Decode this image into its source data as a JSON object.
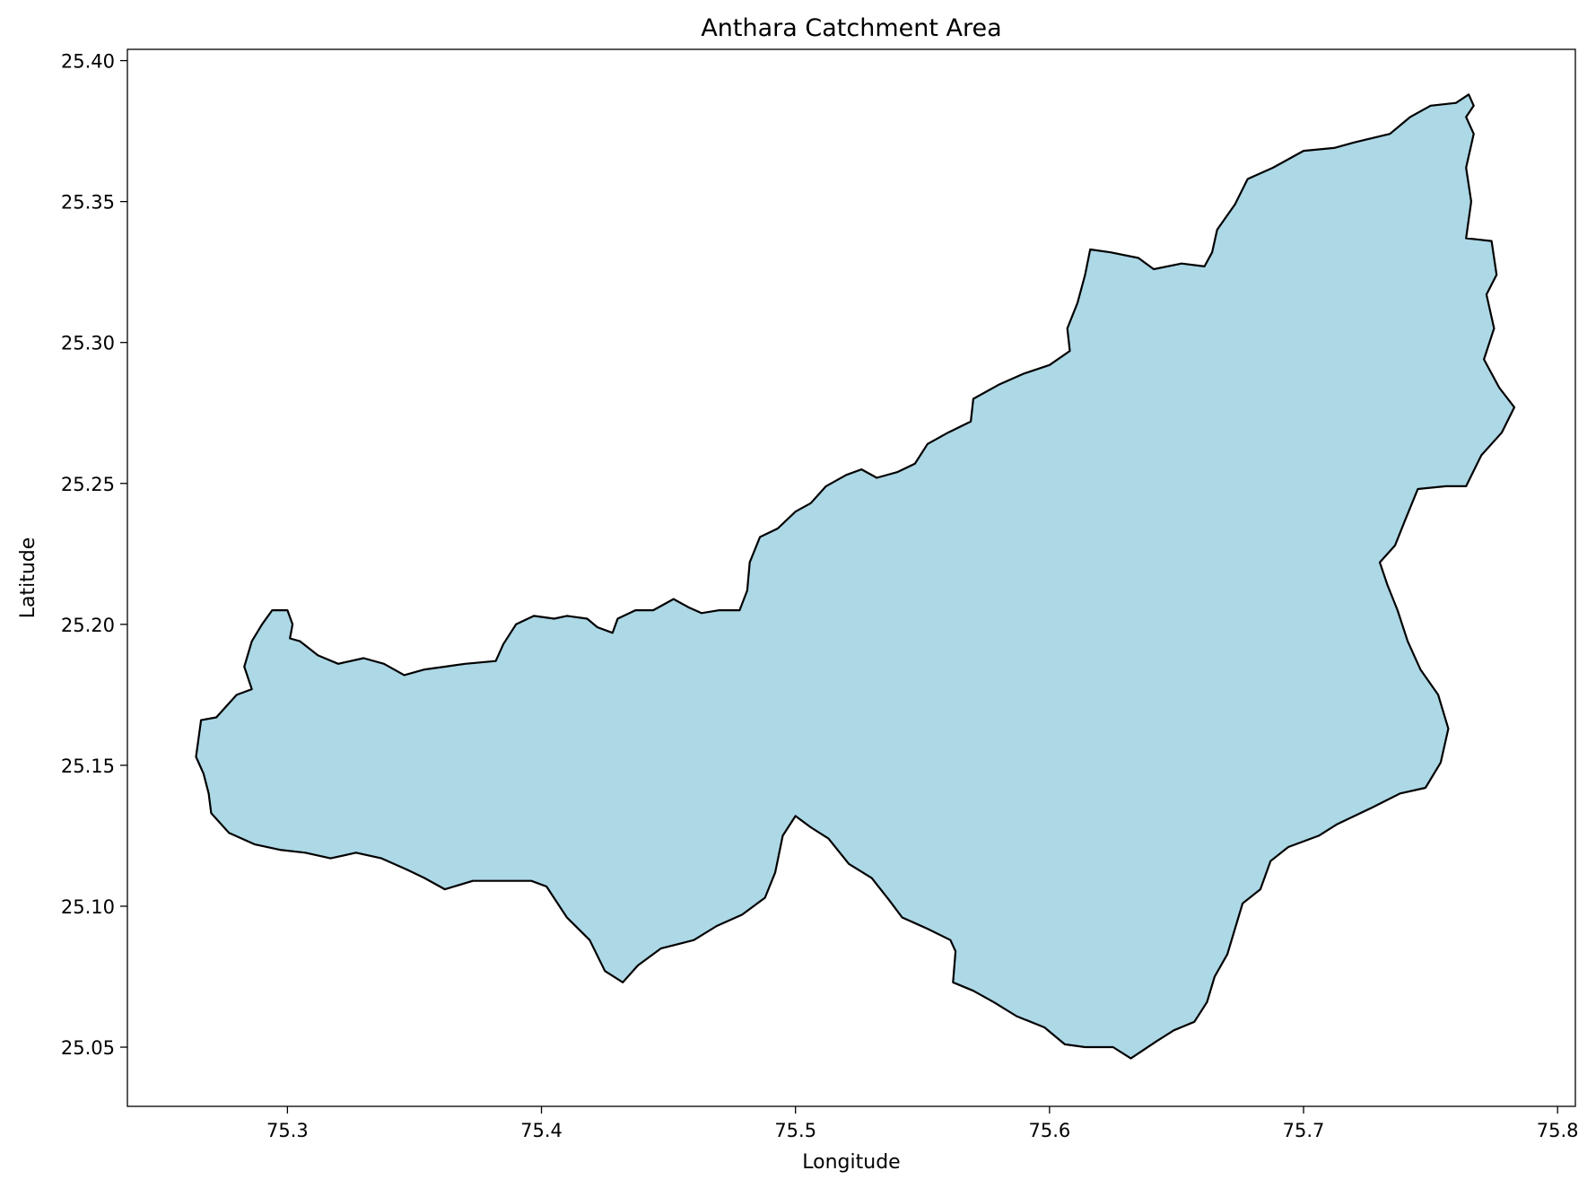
{
  "chart_data": {
    "type": "map",
    "title": "Anthara Catchment Area",
    "xlabel": "Longitude",
    "ylabel": "Latitude",
    "xlim": [
      75.237,
      75.807
    ],
    "ylim": [
      25.029,
      25.404
    ],
    "xticks": [
      75.3,
      75.4,
      75.5,
      75.6,
      75.7,
      75.8
    ],
    "xtick_labels": [
      "75.3",
      "75.4",
      "75.5",
      "75.6",
      "75.7",
      "75.8"
    ],
    "yticks": [
      25.05,
      25.1,
      25.15,
      25.2,
      25.25,
      25.3,
      25.35,
      25.4
    ],
    "ytick_labels": [
      "25.05",
      "25.10",
      "25.15",
      "25.20",
      "25.25",
      "25.30",
      "25.35",
      "25.40"
    ],
    "grid": false,
    "fill_color": "#add8e6",
    "edge_color": "#000000",
    "boundary": [
      [
        75.266,
        25.166
      ],
      [
        75.272,
        25.167
      ],
      [
        75.277,
        25.172
      ],
      [
        75.28,
        25.175
      ],
      [
        75.286,
        25.177
      ],
      [
        75.283,
        25.185
      ],
      [
        75.286,
        25.194
      ],
      [
        75.29,
        25.2
      ],
      [
        75.294,
        25.205
      ],
      [
        75.3,
        25.205
      ],
      [
        75.302,
        25.2
      ],
      [
        75.301,
        25.195
      ],
      [
        75.305,
        25.194
      ],
      [
        75.312,
        25.189
      ],
      [
        75.32,
        25.186
      ],
      [
        75.33,
        25.188
      ],
      [
        75.338,
        25.186
      ],
      [
        75.346,
        25.182
      ],
      [
        75.354,
        25.184
      ],
      [
        75.362,
        25.185
      ],
      [
        75.37,
        25.186
      ],
      [
        75.382,
        25.187
      ],
      [
        75.385,
        25.193
      ],
      [
        75.39,
        25.2
      ],
      [
        75.397,
        25.203
      ],
      [
        75.405,
        25.202
      ],
      [
        75.41,
        25.203
      ],
      [
        75.418,
        25.202
      ],
      [
        75.422,
        25.199
      ],
      [
        75.428,
        25.197
      ],
      [
        75.43,
        25.202
      ],
      [
        75.437,
        25.205
      ],
      [
        75.444,
        25.205
      ],
      [
        75.452,
        25.209
      ],
      [
        75.458,
        25.206
      ],
      [
        75.463,
        25.204
      ],
      [
        75.47,
        25.205
      ],
      [
        75.478,
        25.205
      ],
      [
        75.481,
        25.212
      ],
      [
        75.482,
        25.222
      ],
      [
        75.486,
        25.231
      ],
      [
        75.493,
        25.234
      ],
      [
        75.5,
        25.24
      ],
      [
        75.506,
        25.243
      ],
      [
        75.512,
        25.249
      ],
      [
        75.52,
        25.253
      ],
      [
        75.526,
        25.255
      ],
      [
        75.532,
        25.252
      ],
      [
        75.54,
        25.254
      ],
      [
        75.547,
        25.257
      ],
      [
        75.552,
        25.264
      ],
      [
        75.56,
        25.268
      ],
      [
        75.569,
        25.272
      ],
      [
        75.57,
        25.28
      ],
      [
        75.58,
        25.285
      ],
      [
        75.59,
        25.289
      ],
      [
        75.6,
        25.292
      ],
      [
        75.608,
        25.297
      ],
      [
        75.607,
        25.305
      ],
      [
        75.611,
        25.314
      ],
      [
        75.614,
        25.324
      ],
      [
        75.616,
        25.333
      ],
      [
        75.624,
        25.332
      ],
      [
        75.635,
        25.33
      ],
      [
        75.641,
        25.326
      ],
      [
        75.652,
        25.328
      ],
      [
        75.661,
        25.327
      ],
      [
        75.664,
        25.332
      ],
      [
        75.666,
        25.34
      ],
      [
        75.673,
        25.349
      ],
      [
        75.678,
        25.358
      ],
      [
        75.688,
        25.362
      ],
      [
        75.7,
        25.368
      ],
      [
        75.712,
        25.369
      ],
      [
        75.72,
        25.371
      ],
      [
        75.734,
        25.374
      ],
      [
        75.742,
        25.38
      ],
      [
        75.75,
        25.384
      ],
      [
        75.76,
        25.385
      ],
      [
        75.765,
        25.388
      ],
      [
        75.767,
        25.384
      ],
      [
        75.764,
        25.38
      ],
      [
        75.767,
        25.374
      ],
      [
        75.764,
        25.362
      ],
      [
        75.766,
        25.35
      ],
      [
        75.764,
        25.337
      ],
      [
        75.774,
        25.336
      ],
      [
        75.776,
        25.324
      ],
      [
        75.772,
        25.317
      ],
      [
        75.775,
        25.305
      ],
      [
        75.771,
        25.294
      ],
      [
        75.777,
        25.284
      ],
      [
        75.783,
        25.277
      ],
      [
        75.778,
        25.268
      ],
      [
        75.77,
        25.26
      ],
      [
        75.764,
        25.249
      ],
      [
        75.756,
        25.249
      ],
      [
        75.745,
        25.248
      ],
      [
        75.74,
        25.237
      ],
      [
        75.736,
        25.228
      ],
      [
        75.73,
        25.222
      ],
      [
        75.733,
        25.214
      ],
      [
        75.737,
        25.205
      ],
      [
        75.741,
        25.194
      ],
      [
        75.746,
        25.184
      ],
      [
        75.753,
        25.175
      ],
      [
        75.757,
        25.163
      ],
      [
        75.754,
        25.151
      ],
      [
        75.748,
        25.142
      ],
      [
        75.738,
        25.14
      ],
      [
        75.727,
        25.135
      ],
      [
        75.713,
        25.129
      ],
      [
        75.706,
        25.125
      ],
      [
        75.694,
        25.121
      ],
      [
        75.687,
        25.116
      ],
      [
        75.683,
        25.106
      ],
      [
        75.676,
        25.101
      ],
      [
        75.673,
        25.092
      ],
      [
        75.67,
        25.083
      ],
      [
        75.665,
        25.075
      ],
      [
        75.662,
        25.066
      ],
      [
        75.657,
        25.059
      ],
      [
        75.649,
        25.056
      ],
      [
        75.642,
        25.052
      ],
      [
        75.632,
        25.046
      ],
      [
        75.625,
        25.05
      ],
      [
        75.614,
        25.05
      ],
      [
        75.606,
        25.051
      ],
      [
        75.598,
        25.057
      ],
      [
        75.587,
        25.061
      ],
      [
        75.578,
        25.066
      ],
      [
        75.57,
        25.07
      ],
      [
        75.562,
        25.073
      ],
      [
        75.563,
        25.084
      ],
      [
        75.561,
        25.088
      ],
      [
        75.552,
        25.092
      ],
      [
        75.542,
        25.096
      ],
      [
        75.537,
        25.102
      ],
      [
        75.53,
        25.11
      ],
      [
        75.521,
        25.115
      ],
      [
        75.513,
        25.124
      ],
      [
        75.506,
        25.128
      ],
      [
        75.5,
        25.132
      ],
      [
        75.495,
        25.125
      ],
      [
        75.492,
        25.112
      ],
      [
        75.488,
        25.103
      ],
      [
        75.479,
        25.097
      ],
      [
        75.469,
        25.093
      ],
      [
        75.46,
        25.088
      ],
      [
        75.447,
        25.085
      ],
      [
        75.438,
        25.079
      ],
      [
        75.432,
        25.073
      ],
      [
        75.425,
        25.077
      ],
      [
        75.419,
        25.088
      ],
      [
        75.41,
        25.096
      ],
      [
        75.402,
        25.107
      ],
      [
        75.396,
        25.109
      ],
      [
        75.383,
        25.109
      ],
      [
        75.373,
        25.109
      ],
      [
        75.362,
        25.106
      ],
      [
        75.354,
        25.11
      ],
      [
        75.347,
        25.113
      ],
      [
        75.337,
        25.117
      ],
      [
        75.327,
        25.119
      ],
      [
        75.317,
        25.117
      ],
      [
        75.307,
        25.119
      ],
      [
        75.297,
        25.12
      ],
      [
        75.287,
        25.122
      ],
      [
        75.277,
        25.126
      ],
      [
        75.27,
        25.133
      ],
      [
        75.269,
        25.14
      ],
      [
        75.267,
        25.147
      ],
      [
        75.264,
        25.153
      ],
      [
        75.266,
        25.166
      ]
    ]
  }
}
